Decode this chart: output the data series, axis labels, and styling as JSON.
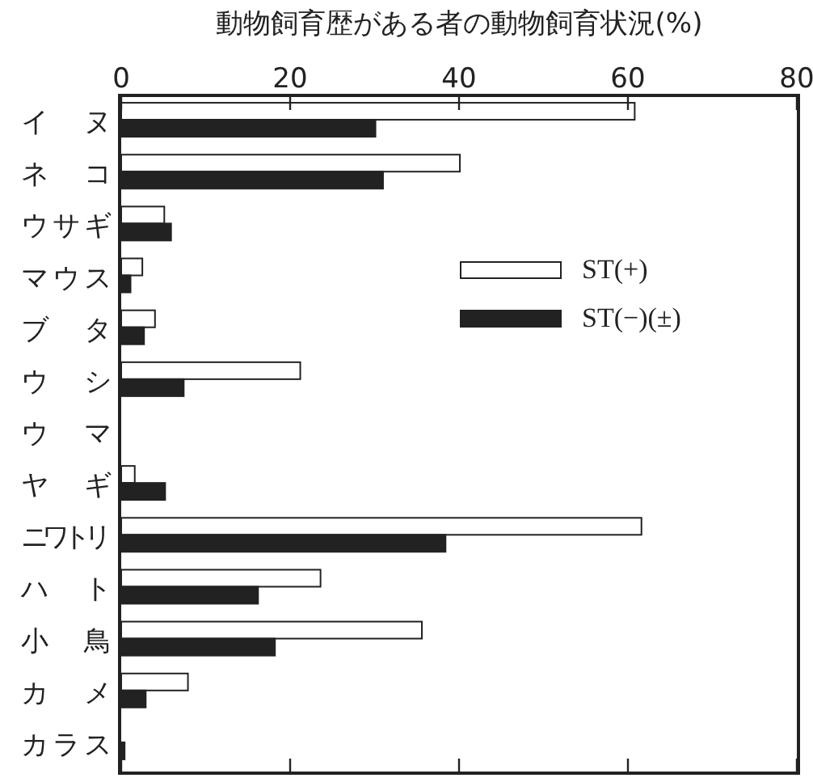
{
  "chart_data": {
    "type": "bar",
    "orientation": "horizontal",
    "title": "動物飼育歴がある者の動物飼育状況(%)",
    "categories": [
      "イヌ",
      "ネコ",
      "ウサギ",
      "マウス",
      "ブタ",
      "ウシ",
      "ウマ",
      "ヤギ",
      "ニワトリ",
      "ハト",
      "小鳥",
      "カメ",
      "カラス"
    ],
    "series": [
      {
        "name": "ST(+)",
        "color": "#ffffff",
        "values": [
          60.8,
          40.1,
          5.1,
          2.5,
          4.0,
          21.2,
          0,
          1.6,
          61.6,
          23.6,
          35.6,
          7.9,
          0
        ]
      },
      {
        "name": "ST(−)(±)",
        "color": "#222222",
        "values": [
          30.1,
          31.0,
          5.9,
          1.1,
          2.7,
          7.4,
          0,
          5.2,
          38.4,
          16.2,
          18.2,
          2.9,
          0.4
        ]
      }
    ],
    "xlim": [
      0,
      80
    ],
    "xticks": [
      0,
      20,
      40,
      60,
      80
    ],
    "legend": "right"
  }
}
